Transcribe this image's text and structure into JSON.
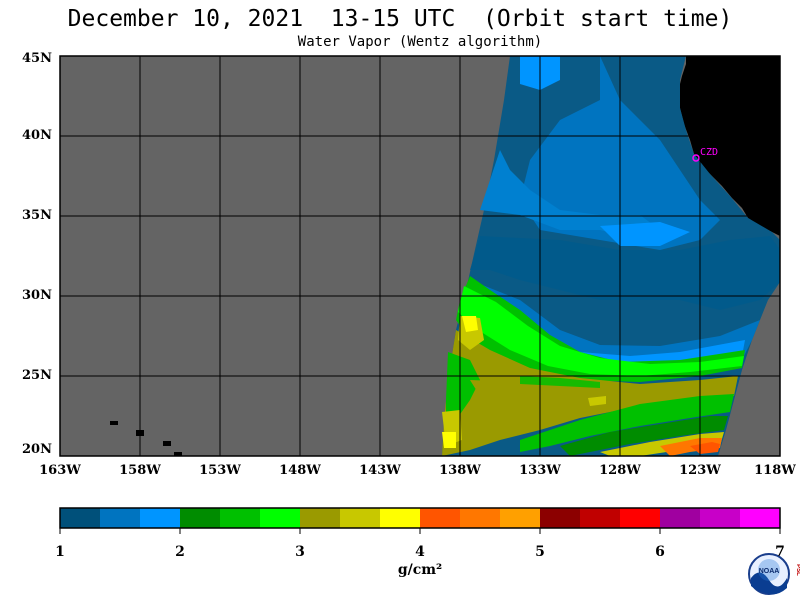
{
  "header": {
    "title": "December 10, 2021  13-15 UTC  (Orbit start time)",
    "subtitle": "Water Vapor (Wentz algorithm)"
  },
  "map": {
    "lat_labels": [
      "45N",
      "40N",
      "35N",
      "30N",
      "25N",
      "20N"
    ],
    "lon_labels": [
      "163W",
      "158W",
      "153W",
      "148W",
      "143W",
      "138W",
      "133W",
      "128W",
      "123W",
      "118W"
    ],
    "station_label": "CZD",
    "colors": {
      "no_data": "#646464",
      "land": "#000000",
      "grid": "#000000",
      "station": "#ff00ff"
    }
  },
  "colorbar": {
    "tick_labels": [
      "1",
      "2",
      "3",
      "4",
      "5",
      "6",
      "7"
    ],
    "units": "g/cm²",
    "colors": [
      "#00507a",
      "#0074c0",
      "#0095ff",
      "#008c00",
      "#00c000",
      "#00ff00",
      "#9a9a00",
      "#c8c800",
      "#ffff00",
      "#ff5500",
      "#ff7700",
      "#ffa000",
      "#8c0000",
      "#c00000",
      "#ff0000",
      "#a000a0",
      "#c800c8",
      "#ff00ff"
    ]
  },
  "logo": {
    "text": "NOAA",
    "side_text": "PSL"
  }
}
